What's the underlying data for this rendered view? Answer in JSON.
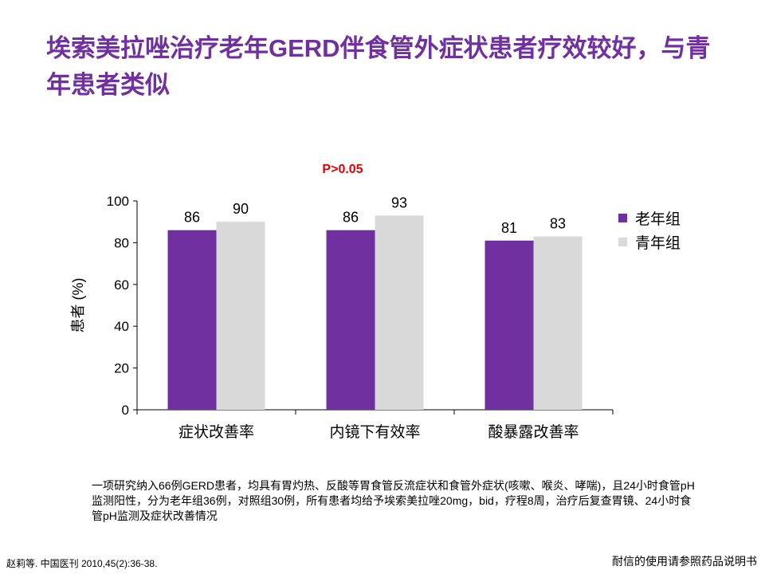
{
  "title": "埃索美拉唑治疗老年GERD伴食管外症状患者疗效较好，与青年患者类似",
  "p_value": "P>0.05",
  "chart_data": {
    "type": "bar",
    "categories": [
      "症状改善率",
      "内镜下有效率",
      "酸暴露改善率"
    ],
    "series": [
      {
        "name": "老年组",
        "values": [
          86,
          86,
          81
        ],
        "color": "#7030a0"
      },
      {
        "name": "青年组",
        "values": [
          90,
          93,
          83
        ],
        "color": "#d9d9d9"
      }
    ],
    "ylabel": "患者 (%)",
    "ylim": [
      0,
      100
    ],
    "yticks": [
      0,
      20,
      40,
      60,
      80,
      100
    ],
    "grid": false,
    "legend": "right"
  },
  "note": "一项研究纳入66例GERD患者，均具有胃灼热、反酸等胃食管反流症状和食管外症状(咳嗽、喉炎、哮喘)，且24小时食管pH监测阳性，分为老年组36例，对照组30例，所有患者均给予埃索美拉唑20mg，bid，疗程8周，治疗后复查胃镜、24小时食管pH监测及症状改善情况",
  "reference": "赵莉等. 中国医刊 2010,45(2):36-38.",
  "disclaimer": "耐信的使用请参照药品说明书"
}
